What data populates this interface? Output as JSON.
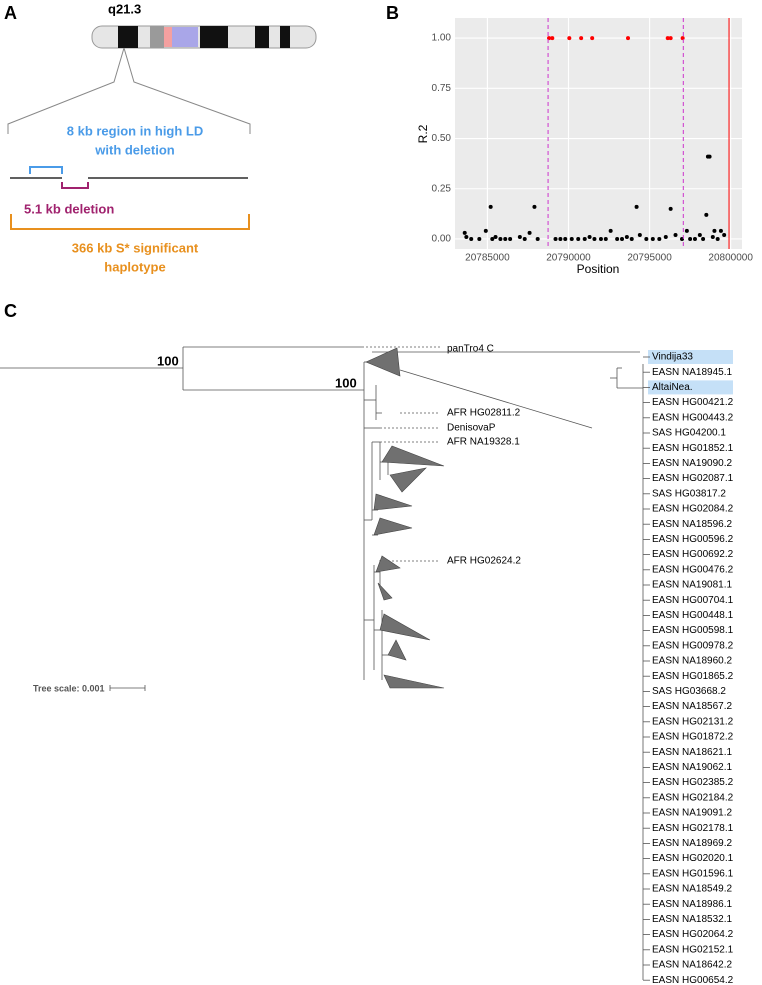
{
  "panel_labels": [
    "A",
    "B",
    "C"
  ],
  "panel_a": {
    "band_label": "q21.3",
    "ld_region_lines": [
      "8 kb region in high LD",
      "with deletion"
    ],
    "deletion_label": "5.1 kb deletion",
    "haplotype_lines": [
      "366 kb S* significant",
      "haplotype"
    ]
  },
  "chart_data": {
    "type": "scatter",
    "x_label": "Position",
    "y_label": "R.2",
    "xlim": [
      20783000,
      20800700
    ],
    "ylim": [
      -0.05,
      1.1
    ],
    "xticks": [
      20785000,
      20790000,
      20795000,
      20800000
    ],
    "yticks": [
      {
        "value": 0,
        "label": "0.00"
      },
      {
        "value": 0.25,
        "label": "0.25"
      },
      {
        "value": 0.5,
        "label": "0.50"
      },
      {
        "value": 0.75,
        "label": "0.75"
      },
      {
        "value": 1,
        "label": "1.00"
      }
    ],
    "grid": true,
    "background": "#ebebeb",
    "vlines": [
      {
        "x": 20788740,
        "color": "#cc33cc",
        "dashed": true
      },
      {
        "x": 20797080,
        "color": "#cc33cc",
        "dashed": true
      },
      {
        "x": 20799900,
        "color": "#ff0000",
        "dashed": false
      }
    ],
    "series": [
      {
        "color": "#000000",
        "x": [
          20783600,
          20783700,
          20784000,
          20784500,
          20784900,
          20785200,
          20785300,
          20785500,
          20785800,
          20786100,
          20786400,
          20787000,
          20787300,
          20787600,
          20787900,
          20788100,
          20789200,
          20789500,
          20789800,
          20790200,
          20790600,
          20791000,
          20791300,
          20791600,
          20792000,
          20792300,
          20792600,
          20793000,
          20793300,
          20793600,
          20793900,
          20794200,
          20794400,
          20794800,
          20795200,
          20795600,
          20796000,
          20796300,
          20796600,
          20797000,
          20797300,
          20797500,
          20797800,
          20798100,
          20798300,
          20798500,
          20798600,
          20798700,
          20798900,
          20799000,
          20799200,
          20799400,
          20799600
        ],
        "y": [
          0.03,
          0.01,
          0,
          0,
          0.04,
          0.16,
          0,
          0.01,
          0,
          0,
          0,
          0.01,
          0,
          0.03,
          0.16,
          0,
          0,
          0,
          0,
          0,
          0,
          0,
          0.01,
          0,
          0,
          0,
          0.04,
          0,
          0,
          0.01,
          0,
          0.16,
          0.02,
          0,
          0,
          0,
          0.01,
          0.15,
          0.02,
          0,
          0.04,
          0,
          0,
          0.02,
          0,
          0.12,
          0.41,
          0.41,
          0.01,
          0.04,
          0,
          0.04,
          0.02
        ]
      },
      {
        "color": "#ff0000",
        "x": [
          20788800,
          20789000,
          20790050,
          20790780,
          20791460,
          20793670,
          20796120,
          20796300,
          20797040
        ],
        "y": [
          1,
          1,
          1,
          1,
          1,
          1,
          1,
          1,
          1
        ]
      }
    ]
  },
  "panel_c": {
    "bootstrap": [
      "100",
      "100"
    ],
    "tree_labels": [
      "panTro4 C",
      "AFR HG02811.2",
      "DenisovaP",
      "AFR NA19328.1",
      "AFR HG02624.2"
    ],
    "scale_label": "Tree scale: 0.001",
    "highlight_color": "#c5e0f7",
    "clade_labels": [
      {
        "text": "Vindija33",
        "highlight": true
      },
      {
        "text": "EASN NA18945.1",
        "highlight": false
      },
      {
        "text": "AltaiNea.",
        "highlight": true
      },
      {
        "text": "EASN HG00421.2",
        "highlight": false
      },
      {
        "text": "EASN HG00443.2",
        "highlight": false
      },
      {
        "text": "SAS HG04200.1",
        "highlight": false
      },
      {
        "text": "EASN HG01852.1",
        "highlight": false
      },
      {
        "text": "EASN NA19090.2",
        "highlight": false
      },
      {
        "text": "EASN HG02087.1",
        "highlight": false
      },
      {
        "text": "SAS HG03817.2",
        "highlight": false
      },
      {
        "text": "EASN HG02084.2",
        "highlight": false
      },
      {
        "text": "EASN NA18596.2",
        "highlight": false
      },
      {
        "text": "EASN HG00596.2",
        "highlight": false
      },
      {
        "text": "EASN HG00692.2",
        "highlight": false
      },
      {
        "text": "EASN HG00476.2",
        "highlight": false
      },
      {
        "text": "EASN NA19081.1",
        "highlight": false
      },
      {
        "text": "EASN HG00704.1",
        "highlight": false
      },
      {
        "text": "EASN HG00448.1",
        "highlight": false
      },
      {
        "text": "EASN HG00598.1",
        "highlight": false
      },
      {
        "text": "EASN HG00978.2",
        "highlight": false
      },
      {
        "text": "EASN NA18960.2",
        "highlight": false
      },
      {
        "text": "EASN HG01865.2",
        "highlight": false
      },
      {
        "text": "SAS HG03668.2",
        "highlight": false
      },
      {
        "text": "EASN NA18567.2",
        "highlight": false
      },
      {
        "text": "EASN HG02131.2",
        "highlight": false
      },
      {
        "text": "EASN HG01872.2",
        "highlight": false
      },
      {
        "text": "EASN NA18621.1",
        "highlight": false
      },
      {
        "text": "EASN NA19062.1",
        "highlight": false
      },
      {
        "text": "EASN HG02385.2",
        "highlight": false
      },
      {
        "text": "EASN HG02184.2",
        "highlight": false
      },
      {
        "text": "EASN NA19091.2",
        "highlight": false
      },
      {
        "text": "EASN HG02178.1",
        "highlight": false
      },
      {
        "text": "EASN NA18969.2",
        "highlight": false
      },
      {
        "text": "EASN HG02020.1",
        "highlight": false
      },
      {
        "text": "EASN HG01596.1",
        "highlight": false
      },
      {
        "text": "EASN NA18549.2",
        "highlight": false
      },
      {
        "text": "EASN NA18986.1",
        "highlight": false
      },
      {
        "text": "EASN NA18532.1",
        "highlight": false
      },
      {
        "text": "EASN HG02064.2",
        "highlight": false
      },
      {
        "text": "EASN HG02152.1",
        "highlight": false
      },
      {
        "text": "EASN NA18642.2",
        "highlight": false
      },
      {
        "text": "EASN HG00654.2",
        "highlight": false
      }
    ]
  }
}
